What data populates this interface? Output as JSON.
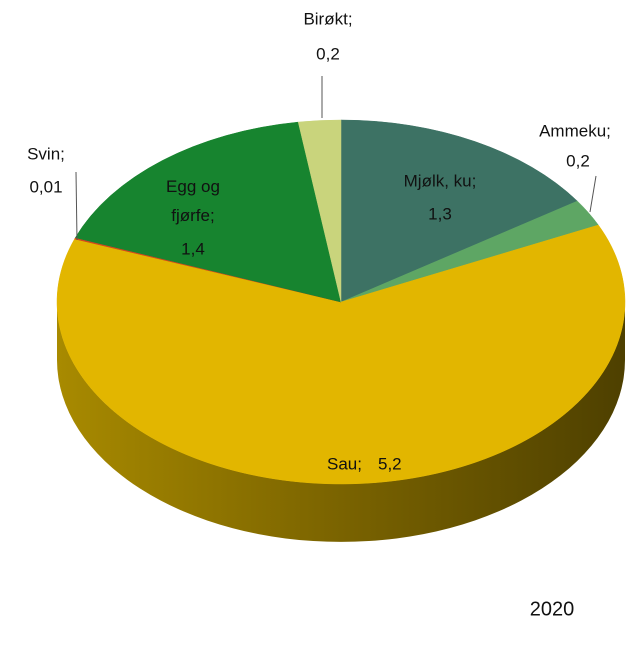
{
  "chart_data": {
    "type": "pie",
    "categories": [
      "Mjølk, ku;",
      "Ammeku;",
      "Sau;",
      "Svin;",
      "Egg og fjørfe;",
      "Birøkt;"
    ],
    "values": [
      1.3,
      0.2,
      5.2,
      0.01,
      1.4,
      0.2
    ],
    "value_labels": [
      "1,3",
      "0,2",
      "5,2",
      "0,01",
      "1,4",
      "0,2"
    ],
    "colors": [
      "#3d7264",
      "#5ea664",
      "#e2b600",
      "#d2461e",
      "#17842f",
      "#c9d47c"
    ],
    "annotation": "2020"
  }
}
